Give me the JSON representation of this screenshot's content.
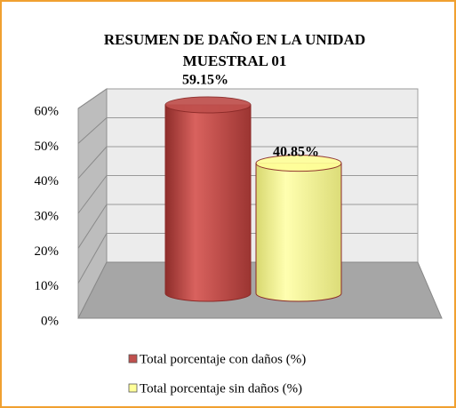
{
  "chart_data": {
    "type": "bar3d",
    "title": [
      "RESUMEN DE DAÑO EN LA UNIDAD",
      "MUESTRAL  01"
    ],
    "series": [
      {
        "name": "Total porcentaje con daños (%)",
        "color": "#c0504d",
        "values": [
          59.15
        ],
        "value_labels": [
          "59.15%"
        ]
      },
      {
        "name": "Total porcentaje sin daños (%)",
        "color": "#ffff99",
        "values": [
          40.85
        ],
        "value_labels": [
          "40.85%"
        ]
      }
    ],
    "ylim": [
      0,
      60
    ],
    "yticks": [
      {
        "value": 0,
        "label": "0%"
      },
      {
        "value": 10,
        "label": "10%"
      },
      {
        "value": 20,
        "label": "20%"
      },
      {
        "value": 30,
        "label": "30%"
      },
      {
        "value": 40,
        "label": "40%"
      },
      {
        "value": 50,
        "label": "50%"
      },
      {
        "value": 60,
        "label": "60%"
      }
    ],
    "grid": true,
    "legend": "bottom"
  }
}
